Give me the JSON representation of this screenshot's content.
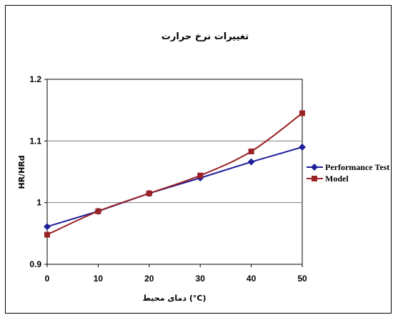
{
  "chart_data": {
    "type": "line",
    "title": "تغییرات نرخ حرارت",
    "xlabel": "دمای محیط (°C)",
    "ylabel": "HR/HRd",
    "x": [
      0,
      10,
      20,
      30,
      40,
      50
    ],
    "xlim": [
      0,
      50
    ],
    "ylim": [
      0.9,
      1.2
    ],
    "y_ticks": [
      "0.9",
      "1",
      "1.1",
      "1.2"
    ],
    "x_ticks": [
      "0",
      "10",
      "20",
      "30",
      "40",
      "50"
    ],
    "grid": "horizontal",
    "legend_position": "right",
    "series": [
      {
        "name": "Performance Test",
        "color": "#1f1f99",
        "marker": "diamond",
        "values": [
          0.961,
          0.986,
          1.015,
          1.04,
          1.066,
          1.09
        ]
      },
      {
        "name": "Model",
        "color": "#9b2226",
        "marker": "square",
        "values": [
          0.948,
          0.986,
          1.015,
          1.044,
          1.083,
          1.145
        ]
      }
    ]
  }
}
